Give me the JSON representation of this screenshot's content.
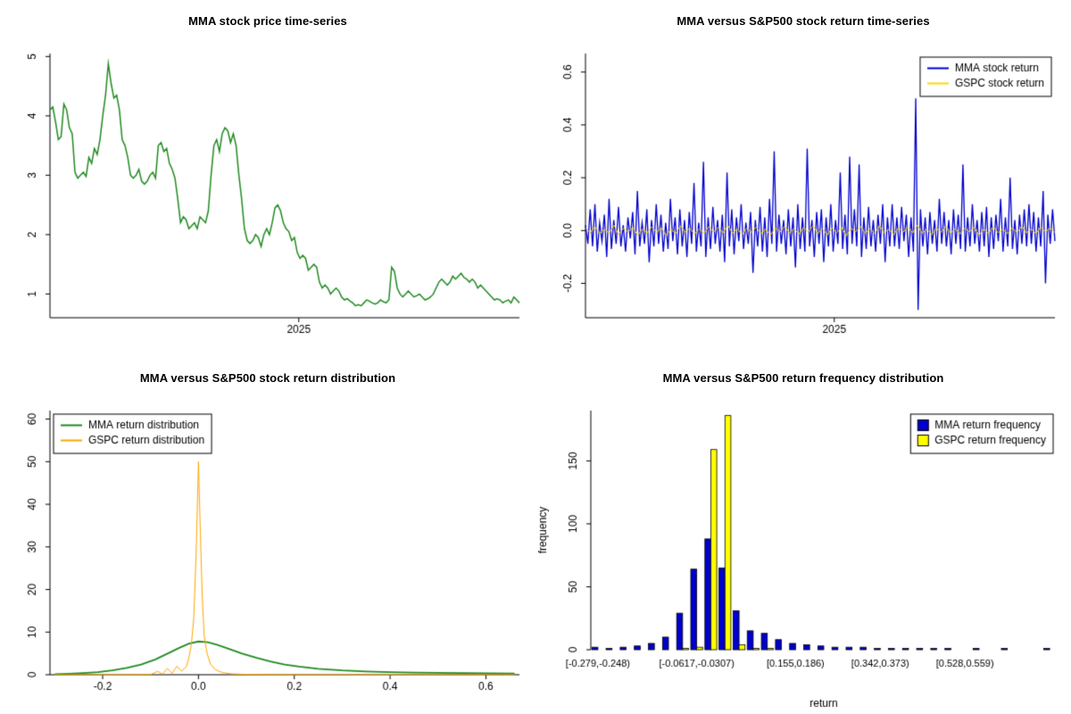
{
  "figure": {
    "background": "#ffffff"
  },
  "chart_data": [
    {
      "id": "price",
      "type": "line",
      "title": "MMA stock price time-series",
      "xlabel": "",
      "ylabel": "",
      "color": "#228B22",
      "ylim": [
        0.6,
        5.05
      ],
      "y_ticks": [
        {
          "v": 1,
          "label": "1"
        },
        {
          "v": 2,
          "label": "2"
        },
        {
          "v": 3,
          "label": "3"
        },
        {
          "v": 4,
          "label": "4"
        },
        {
          "v": 5,
          "label": "5"
        }
      ],
      "x_ticks": [
        {
          "pos": 0.53,
          "label": "2025"
        }
      ],
      "values": [
        4.1,
        4.15,
        3.9,
        3.6,
        3.65,
        4.2,
        4.1,
        3.8,
        3.7,
        3.05,
        2.95,
        3.0,
        3.05,
        2.98,
        3.3,
        3.2,
        3.45,
        3.35,
        3.6,
        4.0,
        4.35,
        4.88,
        4.55,
        4.3,
        4.35,
        4.1,
        3.6,
        3.5,
        3.3,
        3.0,
        2.95,
        3.0,
        3.1,
        2.9,
        2.85,
        2.9,
        3.0,
        3.05,
        2.95,
        3.5,
        3.55,
        3.4,
        3.45,
        3.2,
        3.1,
        2.95,
        2.6,
        2.2,
        2.3,
        2.25,
        2.1,
        2.15,
        2.2,
        2.1,
        2.3,
        2.25,
        2.2,
        2.4,
        3.0,
        3.5,
        3.6,
        3.4,
        3.7,
        3.8,
        3.75,
        3.55,
        3.7,
        3.5,
        3.0,
        2.6,
        2.1,
        1.9,
        1.85,
        1.9,
        2.0,
        1.95,
        1.8,
        2.0,
        2.1,
        2.0,
        2.2,
        2.45,
        2.5,
        2.4,
        2.2,
        2.1,
        2.05,
        1.9,
        1.95,
        1.7,
        1.6,
        1.65,
        1.6,
        1.4,
        1.45,
        1.5,
        1.45,
        1.2,
        1.1,
        1.15,
        1.1,
        1.0,
        1.05,
        1.1,
        1.05,
        0.95,
        0.9,
        0.92,
        0.88,
        0.85,
        0.8,
        0.82,
        0.8,
        0.85,
        0.9,
        0.88,
        0.85,
        0.83,
        0.85,
        0.9,
        0.87,
        0.85,
        0.9,
        1.45,
        1.38,
        1.1,
        1.0,
        0.95,
        1.0,
        1.05,
        1.0,
        0.95,
        0.97,
        1.0,
        0.95,
        0.9,
        0.92,
        0.95,
        1.0,
        1.1,
        1.2,
        1.25,
        1.2,
        1.15,
        1.2,
        1.3,
        1.25,
        1.3,
        1.35,
        1.28,
        1.25,
        1.2,
        1.25,
        1.2,
        1.1,
        1.15,
        1.1,
        1.05,
        1.0,
        0.95,
        0.9,
        0.92,
        0.9,
        0.85,
        0.88,
        0.9,
        0.85,
        0.95,
        0.9,
        0.85
      ]
    },
    {
      "id": "returns",
      "type": "line-multi",
      "title": "MMA versus S&P500 stock return time-series",
      "xlabel": "",
      "ylabel": "",
      "ylim": [
        -0.33,
        0.67
      ],
      "y_ticks": [
        {
          "v": -0.2,
          "label": "-0.2"
        },
        {
          "v": 0,
          "label": "0.0"
        },
        {
          "v": 0.2,
          "label": "0.2"
        },
        {
          "v": 0.4,
          "label": "0.4"
        },
        {
          "v": 0.6,
          "label": "0.6"
        }
      ],
      "x_ticks": [
        {
          "pos": 0.53,
          "label": "2025"
        }
      ],
      "legend": {
        "position": "top-right",
        "marker": "line"
      },
      "series": [
        {
          "name": "MMA stock return",
          "color": "#0000CD",
          "width": 1.3,
          "values": [
            0.02,
            -0.05,
            0.08,
            -0.06,
            0.1,
            -0.08,
            0.03,
            -0.04,
            0.06,
            -0.1,
            0.12,
            -0.07,
            0.04,
            -0.05,
            0.09,
            -0.06,
            0.02,
            -0.08,
            0.05,
            -0.03,
            0.07,
            -0.09,
            0.15,
            -0.06,
            0.03,
            -0.05,
            0.08,
            -0.12,
            0.04,
            -0.06,
            0.1,
            -0.05,
            0.06,
            -0.08,
            0.03,
            -0.07,
            0.12,
            -0.04,
            0.05,
            -0.09,
            0.08,
            -0.06,
            0.04,
            -0.1,
            0.07,
            -0.05,
            0.18,
            -0.08,
            0.03,
            -0.06,
            0.26,
            -0.1,
            0.05,
            -0.07,
            0.09,
            -0.05,
            0.04,
            -0.08,
            0.06,
            -0.12,
            0.22,
            -0.06,
            0.08,
            -0.09,
            0.05,
            -0.04,
            0.1,
            -0.07,
            0.03,
            -0.05,
            0.07,
            -0.16,
            0.04,
            -0.06,
            0.09,
            -0.08,
            0.05,
            -0.1,
            0.12,
            -0.05,
            0.3,
            -0.08,
            0.06,
            -0.05,
            0.04,
            -0.09,
            0.08,
            -0.06,
            0.05,
            -0.14,
            0.1,
            -0.07,
            0.05,
            -0.08,
            0.31,
            -0.06,
            0.04,
            -0.1,
            0.07,
            -0.05,
            0.08,
            -0.12,
            0.05,
            -0.06,
            0.1,
            -0.08,
            0.04,
            -0.05,
            0.22,
            -0.07,
            0.06,
            -0.09,
            0.28,
            -0.05,
            0.08,
            -0.06,
            0.25,
            -0.1,
            0.05,
            -0.07,
            0.09,
            -0.06,
            0.04,
            -0.08,
            0.06,
            -0.05,
            0.1,
            -0.12,
            0.05,
            -0.06,
            0.1,
            -0.06,
            0.05,
            -0.07,
            0.09,
            -0.04,
            0.06,
            -0.1,
            0.05,
            -0.08,
            0.5,
            -0.3,
            0.08,
            -0.06,
            0.05,
            -0.09,
            0.07,
            -0.05,
            0.04,
            -0.08,
            0.12,
            -0.05,
            0.07,
            -0.06,
            0.04,
            -0.09,
            0.08,
            -0.05,
            0.06,
            -0.07,
            0.25,
            -0.08,
            0.05,
            -0.06,
            0.1,
            -0.05,
            0.04,
            -0.08,
            0.07,
            -0.06,
            0.09,
            -0.1,
            0.05,
            -0.07,
            0.06,
            -0.04,
            0.12,
            -0.08,
            0.05,
            -0.06,
            0.2,
            -0.07,
            0.04,
            -0.09,
            0.06,
            -0.05,
            0.08,
            -0.06,
            0.1,
            -0.05,
            0.07,
            -0.08,
            0.05,
            -0.06,
            0.15,
            -0.2,
            0.06,
            -0.05,
            0.08,
            -0.04
          ]
        },
        {
          "name": "GSPC stock return",
          "color": "#FFD700",
          "width": 1,
          "values": [
            0.01,
            -0.008,
            0.015,
            -0.012,
            0.005,
            -0.01,
            0.02,
            -0.015,
            0.008,
            -0.005,
            0.012,
            -0.018,
            0.006,
            -0.009,
            0.014,
            -0.007,
            0.01,
            -0.02,
            0.005,
            -0.012,
            0.018,
            -0.006,
            0.009,
            -0.014,
            0.007,
            -0.01,
            0.015,
            -0.005,
            0.012,
            -0.008,
            0.02,
            -0.01,
            0.006,
            -0.015,
            0.009,
            -0.007,
            0.013,
            -0.011,
            0.005,
            -0.018,
            0.01,
            -0.006,
            0.016,
            -0.009,
            0.007,
            -0.013,
            0.011,
            -0.005,
            0.018,
            -0.01,
            0.006,
            -0.016,
            0.009,
            -0.007,
            0.012,
            -0.02,
            0.008,
            -0.005,
            0.015,
            -0.01,
            0.007,
            -0.012,
            0.018,
            -0.008,
            0.005,
            -0.015,
            0.01,
            -0.006,
            0.013,
            -0.009,
            0.02,
            -0.011,
            0.005,
            -0.014,
            0.008,
            -0.006,
            0.016,
            -0.01,
            0.007,
            -0.013,
            0.009,
            -0.005,
            0.012,
            -0.018,
            0.006,
            -0.01,
            0.014,
            -0.008,
            0.005,
            -0.012,
            0.01,
            -0.007,
            0.017,
            -0.009,
            0.006,
            -0.011,
            0.013,
            -0.005,
            0.01,
            -0.008
          ]
        }
      ]
    },
    {
      "id": "density",
      "type": "density",
      "title": "MMA versus S&P500 stock return distribution",
      "xlabel": "",
      "ylabel": "",
      "xlim": [
        -0.31,
        0.67
      ],
      "ylim": [
        0,
        62
      ],
      "y_ticks": [
        {
          "v": 0,
          "label": "0"
        },
        {
          "v": 10,
          "label": "10"
        },
        {
          "v": 20,
          "label": "20"
        },
        {
          "v": 30,
          "label": "30"
        },
        {
          "v": 40,
          "label": "40"
        },
        {
          "v": 50,
          "label": "50"
        },
        {
          "v": 60,
          "label": "60"
        }
      ],
      "x_ticks": [
        {
          "v": -0.2,
          "label": "-0.2"
        },
        {
          "v": 0,
          "label": "0.0"
        },
        {
          "v": 0.2,
          "label": "0.2"
        },
        {
          "v": 0.4,
          "label": "0.4"
        },
        {
          "v": 0.6,
          "label": "0.6"
        }
      ],
      "legend": {
        "position": "top-left",
        "marker": "line"
      },
      "series": [
        {
          "name": "MMA return distribution",
          "color": "#228B22",
          "width": 1.8,
          "points": [
            [
              -0.3,
              0.15
            ],
            [
              -0.27,
              0.25
            ],
            [
              -0.24,
              0.4
            ],
            [
              -0.21,
              0.6
            ],
            [
              -0.18,
              1.0
            ],
            [
              -0.15,
              1.6
            ],
            [
              -0.12,
              2.4
            ],
            [
              -0.09,
              3.6
            ],
            [
              -0.06,
              5.2
            ],
            [
              -0.04,
              6.3
            ],
            [
              -0.02,
              7.3
            ],
            [
              0,
              7.8
            ],
            [
              0.02,
              7.6
            ],
            [
              0.04,
              7.0
            ],
            [
              0.06,
              6.2
            ],
            [
              0.09,
              5.0
            ],
            [
              0.12,
              4.0
            ],
            [
              0.15,
              3.1
            ],
            [
              0.18,
              2.4
            ],
            [
              0.21,
              1.9
            ],
            [
              0.25,
              1.4
            ],
            [
              0.3,
              1.0
            ],
            [
              0.35,
              0.75
            ],
            [
              0.4,
              0.6
            ],
            [
              0.45,
              0.5
            ],
            [
              0.5,
              0.45
            ],
            [
              0.55,
              0.4
            ],
            [
              0.6,
              0.35
            ],
            [
              0.66,
              0.3
            ]
          ]
        },
        {
          "name": "GSPC return distribution",
          "color": "#FFA500",
          "width": 1,
          "points": [
            [
              -0.3,
              0
            ],
            [
              -0.15,
              0
            ],
            [
              -0.1,
              0.05
            ],
            [
              -0.085,
              0.8
            ],
            [
              -0.075,
              0.15
            ],
            [
              -0.065,
              1.5
            ],
            [
              -0.055,
              0.3
            ],
            [
              -0.045,
              2.0
            ],
            [
              -0.035,
              0.8
            ],
            [
              -0.025,
              2.0
            ],
            [
              -0.02,
              4.0
            ],
            [
              -0.015,
              7.0
            ],
            [
              -0.01,
              13.0
            ],
            [
              -0.005,
              28.0
            ],
            [
              0,
              50.0
            ],
            [
              0.004,
              33.0
            ],
            [
              0.008,
              18.0
            ],
            [
              0.012,
              9.0
            ],
            [
              0.018,
              5.0
            ],
            [
              0.025,
              2.5
            ],
            [
              0.035,
              1.2
            ],
            [
              0.05,
              0.5
            ],
            [
              0.07,
              0.2
            ],
            [
              0.1,
              0.08
            ],
            [
              0.15,
              0.02
            ],
            [
              0.3,
              0
            ],
            [
              0.66,
              0
            ]
          ]
        }
      ]
    },
    {
      "id": "histogram",
      "type": "grouped-bar",
      "title": "MMA versus S&P500 return frequency distribution",
      "xlabel": "return",
      "ylabel": "frequency",
      "ylim": [
        0,
        190
      ],
      "y_ticks": [
        {
          "v": 0,
          "label": "0"
        },
        {
          "v": 50,
          "label": "50"
        },
        {
          "v": 100,
          "label": "100"
        },
        {
          "v": 150,
          "label": "150"
        }
      ],
      "x_bin_labels": [
        {
          "bin": 0,
          "label": "[-0.279,-0.248)"
        },
        {
          "bin": 7,
          "label": "[-0.0617,-0.0307)"
        },
        {
          "bin": 14,
          "label": "[0.155,0.186)"
        },
        {
          "bin": 20,
          "label": "[0.342,0.373)"
        },
        {
          "bin": 26,
          "label": "[0.528,0.559)"
        }
      ],
      "legend": {
        "position": "top-right",
        "marker": "square"
      },
      "margins": {
        "l": 62,
        "r": 16,
        "t": 16,
        "b": 72
      },
      "series": [
        {
          "name": "MMA return frequency",
          "color": "#0000CD",
          "values": [
            2,
            1,
            2,
            3,
            5,
            10,
            29,
            64,
            88,
            65,
            31,
            15,
            13,
            8,
            5,
            4,
            3,
            2,
            2,
            2,
            1,
            1,
            1,
            1,
            1,
            1,
            0,
            1,
            0,
            1,
            0,
            0,
            1
          ]
        },
        {
          "name": "GSPC return frequency",
          "color": "#FFFF00",
          "values": [
            0,
            0,
            0,
            0,
            0,
            0,
            1,
            2,
            159,
            186,
            4,
            1,
            1,
            0,
            0,
            0,
            0,
            0,
            0,
            0,
            0,
            0,
            0,
            0,
            0,
            0,
            0,
            0,
            0,
            0,
            0,
            0,
            0
          ]
        }
      ]
    }
  ]
}
